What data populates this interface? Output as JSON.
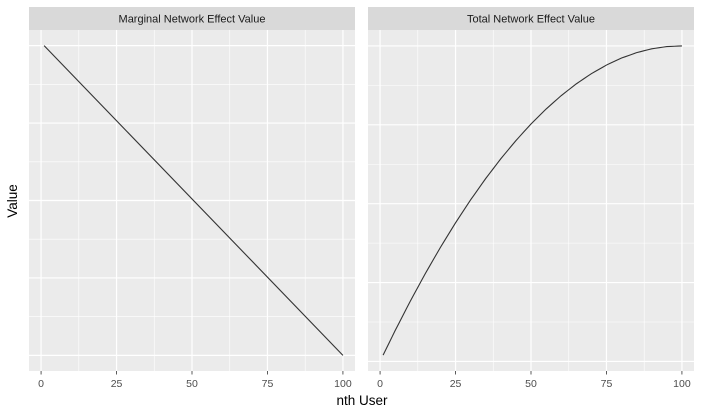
{
  "chart_data": {
    "type": "line",
    "xlabel": "nth User",
    "ylabel": "Value",
    "x_ticks": [
      0,
      25,
      50,
      75,
      100
    ],
    "xlim": [
      -4,
      104
    ],
    "y_tick_labels_shown": false,
    "grid": true,
    "panels": [
      {
        "title": "Marginal Network Effect Value",
        "series": [
          {
            "x": [
              1,
              100
            ],
            "y": [
              99,
              0
            ]
          }
        ],
        "ylim": [
          -5,
          104
        ]
      },
      {
        "title": "Total Network Effect Value",
        "series": [
          {
            "x": [
              1,
              5,
              10,
              15,
              20,
              25,
              30,
              35,
              40,
              45,
              50,
              55,
              60,
              65,
              70,
              75,
              80,
              85,
              90,
              95,
              100
            ],
            "y": [
              99,
              485,
              945,
              1380,
              1790,
              2175,
              2535,
              2870,
              3180,
              3465,
              3725,
              3960,
              4170,
              4355,
              4515,
              4650,
              4760,
              4845,
              4905,
              4940,
              4950
            ]
          }
        ],
        "ylim": [
          -150,
          5200
        ]
      }
    ],
    "colors": {
      "panel_background": "#ebebeb",
      "grid_major": "#ffffff",
      "strip_background": "#d9d9d9",
      "line": "#333333"
    }
  }
}
